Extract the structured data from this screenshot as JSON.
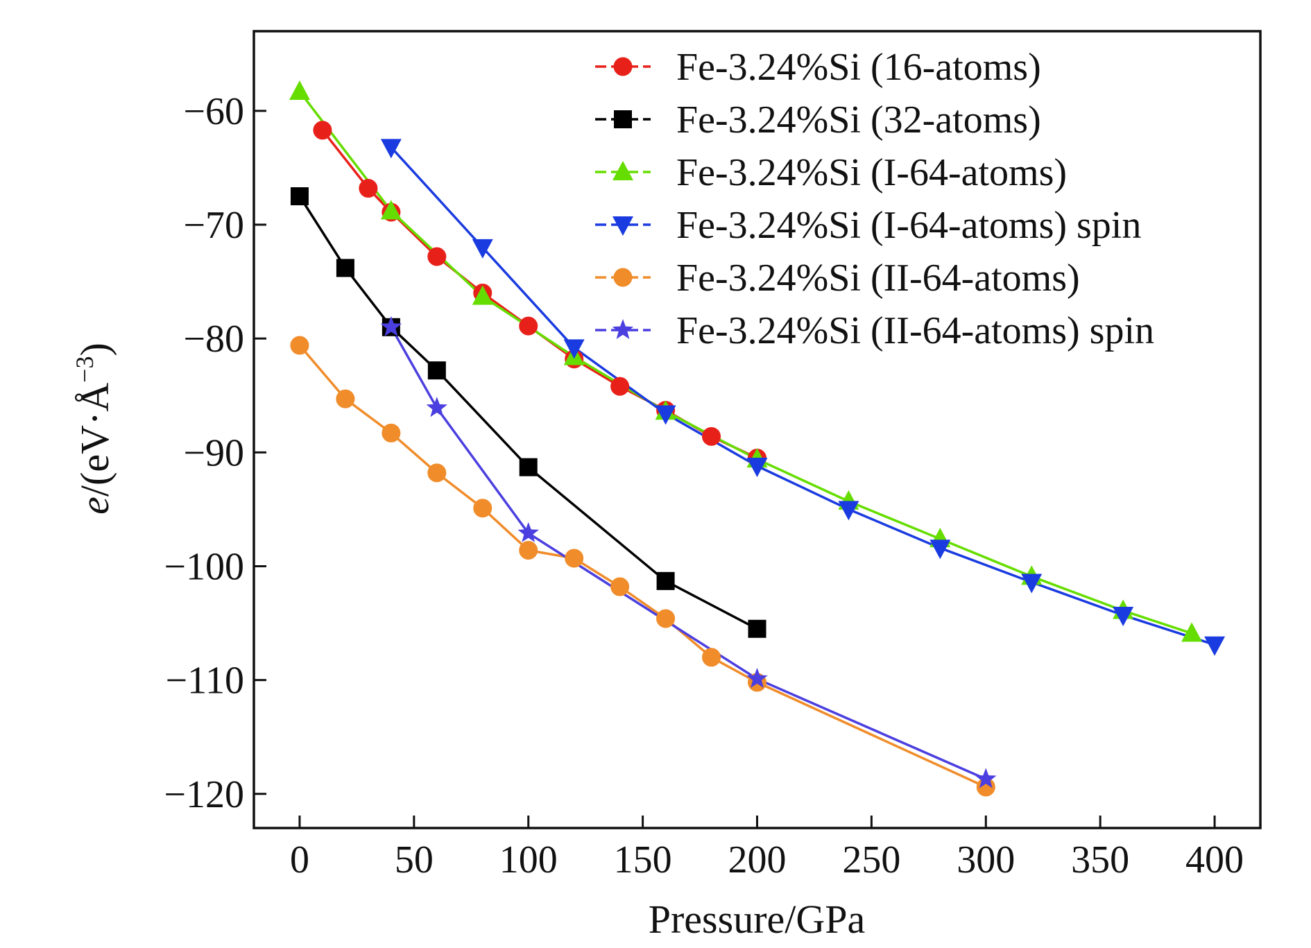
{
  "chart_data": {
    "type": "line",
    "xlabel": "Pressure/GPa",
    "ylabel_italic": "e",
    "ylabel_rest": "/(eV·Å",
    "ylabel_sup": "−3",
    "ylabel_close": ")",
    "xlim": [
      -20,
      420
    ],
    "ylim": [
      -123,
      -53
    ],
    "xticks": [
      0,
      50,
      100,
      150,
      200,
      250,
      300,
      350,
      400
    ],
    "xtick_labels": [
      "0",
      "50",
      "100",
      "150",
      "200",
      "250",
      "300",
      "350",
      "400"
    ],
    "yticks": [
      -60,
      -70,
      -80,
      -90,
      -100,
      -110,
      -120
    ],
    "ytick_labels": [
      "−60",
      "−70",
      "−80",
      "−90",
      "−100",
      "−110",
      "−120"
    ],
    "grid": false,
    "legend_position": "top-right",
    "series": [
      {
        "name": "Fe-3.24%Si (16-atoms)",
        "color": "#e8201a",
        "marker": "circle",
        "x": [
          10,
          30,
          40,
          60,
          80,
          100,
          120,
          140,
          160,
          180,
          200
        ],
        "y": [
          -61.7,
          -66.8,
          -68.9,
          -72.8,
          -76.0,
          -78.9,
          -81.8,
          -84.2,
          -86.3,
          -88.6,
          -90.5
        ]
      },
      {
        "name": "Fe-3.24%Si (32-atoms)",
        "color": "#000000",
        "marker": "square",
        "x": [
          0,
          20,
          40,
          60,
          100,
          160,
          200
        ],
        "y": [
          -67.5,
          -73.8,
          -79.0,
          -82.8,
          -91.3,
          -101.3,
          -105.5
        ]
      },
      {
        "name": "Fe-3.24%Si (I-64-atoms)",
        "color": "#66dd00",
        "marker": "triangle-up",
        "x": [
          0,
          40,
          80,
          120,
          160,
          200,
          240,
          280,
          320,
          360,
          390
        ],
        "y": [
          -58.3,
          -68.8,
          -76.3,
          -81.6,
          -86.4,
          -90.6,
          -94.3,
          -97.6,
          -100.9,
          -103.9,
          -105.9
        ]
      },
      {
        "name": "Fe-3.24%Si (I-64-atoms) spin",
        "color": "#1a3be0",
        "marker": "triangle-down",
        "x": [
          40,
          80,
          120,
          160,
          200,
          240,
          280,
          320,
          360,
          400
        ],
        "y": [
          -63.2,
          -72.0,
          -80.8,
          -86.6,
          -91.2,
          -95.0,
          -98.4,
          -101.4,
          -104.3,
          -106.9
        ]
      },
      {
        "name": "Fe-3.24%Si (II-64-atoms)",
        "color": "#f08c2a",
        "marker": "circle",
        "x": [
          0,
          20,
          40,
          60,
          80,
          100,
          120,
          140,
          160,
          180,
          200,
          300
        ],
        "y": [
          -80.6,
          -85.3,
          -88.3,
          -91.8,
          -94.9,
          -98.6,
          -99.3,
          -101.8,
          -104.6,
          -108.0,
          -110.2,
          -119.4
        ]
      },
      {
        "name": "Fe-3.24%Si (II-64-atoms) spin",
        "color": "#4b3fe0",
        "marker": "star",
        "x": [
          40,
          60,
          100,
          200,
          300
        ],
        "y": [
          -79.0,
          -86.1,
          -97.1,
          -109.9,
          -118.7
        ]
      }
    ]
  }
}
